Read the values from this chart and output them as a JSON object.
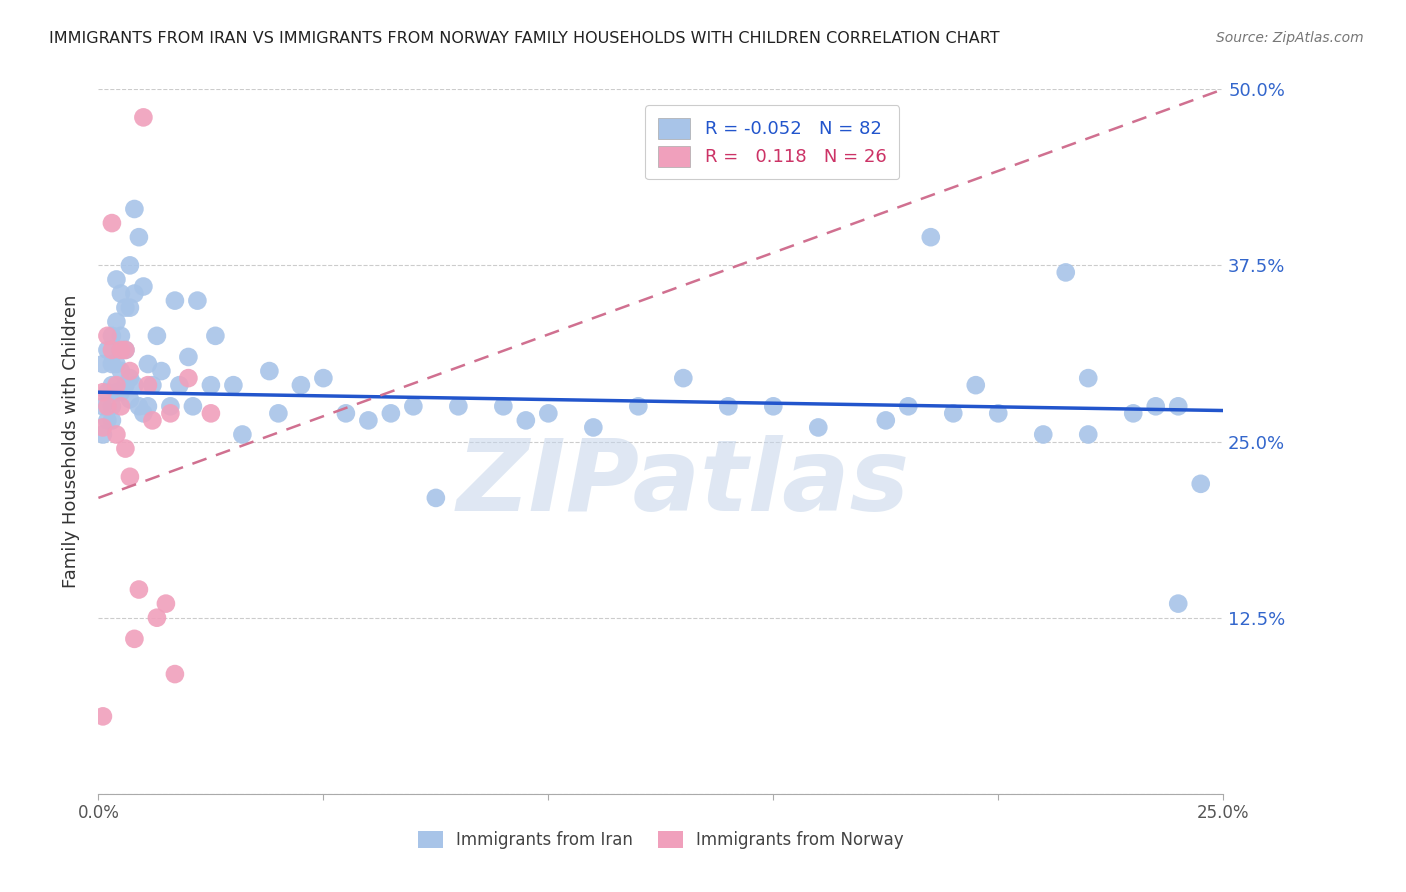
{
  "title": "IMMIGRANTS FROM IRAN VS IMMIGRANTS FROM NORWAY FAMILY HOUSEHOLDS WITH CHILDREN CORRELATION CHART",
  "source": "Source: ZipAtlas.com",
  "ylabel": "Family Households with Children",
  "xlim": [
    0.0,
    0.25
  ],
  "ylim": [
    0.0,
    0.5
  ],
  "iran_R": "-0.052",
  "iran_N": "82",
  "norway_R": "0.118",
  "norway_N": "26",
  "iran_color": "#a8c4e8",
  "norway_color": "#f0a0bc",
  "iran_line_color": "#2255cc",
  "norway_line_color": "#d07090",
  "iran_scatter_x": [
    0.001,
    0.001,
    0.001,
    0.002,
    0.002,
    0.002,
    0.003,
    0.003,
    0.003,
    0.003,
    0.003,
    0.004,
    0.004,
    0.004,
    0.004,
    0.005,
    0.005,
    0.005,
    0.005,
    0.006,
    0.006,
    0.006,
    0.007,
    0.007,
    0.007,
    0.007,
    0.008,
    0.008,
    0.008,
    0.009,
    0.009,
    0.01,
    0.01,
    0.011,
    0.011,
    0.012,
    0.013,
    0.014,
    0.016,
    0.017,
    0.018,
    0.02,
    0.021,
    0.022,
    0.025,
    0.026,
    0.03,
    0.032,
    0.038,
    0.04,
    0.045,
    0.05,
    0.055,
    0.06,
    0.065,
    0.07,
    0.075,
    0.08,
    0.09,
    0.095,
    0.1,
    0.11,
    0.12,
    0.13,
    0.14,
    0.15,
    0.16,
    0.18,
    0.185,
    0.19,
    0.2,
    0.21,
    0.215,
    0.22,
    0.23,
    0.235,
    0.24,
    0.245,
    0.24,
    0.22,
    0.195,
    0.175
  ],
  "iran_scatter_y": [
    0.305,
    0.275,
    0.255,
    0.315,
    0.285,
    0.265,
    0.325,
    0.305,
    0.29,
    0.275,
    0.265,
    0.365,
    0.335,
    0.305,
    0.285,
    0.355,
    0.325,
    0.3,
    0.285,
    0.345,
    0.315,
    0.29,
    0.375,
    0.345,
    0.295,
    0.28,
    0.415,
    0.355,
    0.29,
    0.395,
    0.275,
    0.36,
    0.27,
    0.305,
    0.275,
    0.29,
    0.325,
    0.3,
    0.275,
    0.35,
    0.29,
    0.31,
    0.275,
    0.35,
    0.29,
    0.325,
    0.29,
    0.255,
    0.3,
    0.27,
    0.29,
    0.295,
    0.27,
    0.265,
    0.27,
    0.275,
    0.21,
    0.275,
    0.275,
    0.265,
    0.27,
    0.26,
    0.275,
    0.295,
    0.275,
    0.275,
    0.26,
    0.275,
    0.395,
    0.27,
    0.27,
    0.255,
    0.37,
    0.295,
    0.27,
    0.275,
    0.135,
    0.22,
    0.275,
    0.255,
    0.29,
    0.265
  ],
  "norway_scatter_x": [
    0.001,
    0.001,
    0.001,
    0.002,
    0.002,
    0.003,
    0.003,
    0.004,
    0.004,
    0.005,
    0.005,
    0.006,
    0.006,
    0.007,
    0.007,
    0.008,
    0.009,
    0.01,
    0.011,
    0.012,
    0.013,
    0.015,
    0.016,
    0.017,
    0.02,
    0.025
  ],
  "norway_scatter_y": [
    0.285,
    0.26,
    0.055,
    0.325,
    0.275,
    0.405,
    0.315,
    0.29,
    0.255,
    0.315,
    0.275,
    0.315,
    0.245,
    0.3,
    0.225,
    0.11,
    0.145,
    0.48,
    0.29,
    0.265,
    0.125,
    0.135,
    0.27,
    0.085,
    0.295,
    0.27
  ],
  "iran_trend_x": [
    0.0,
    0.25
  ],
  "iran_trend_y": [
    0.285,
    0.272
  ],
  "norway_trend_x": [
    0.0,
    0.25
  ],
  "norway_trend_y": [
    0.21,
    0.5
  ],
  "watermark": "ZIPatlas",
  "background_color": "#ffffff",
  "grid_color": "#cccccc"
}
